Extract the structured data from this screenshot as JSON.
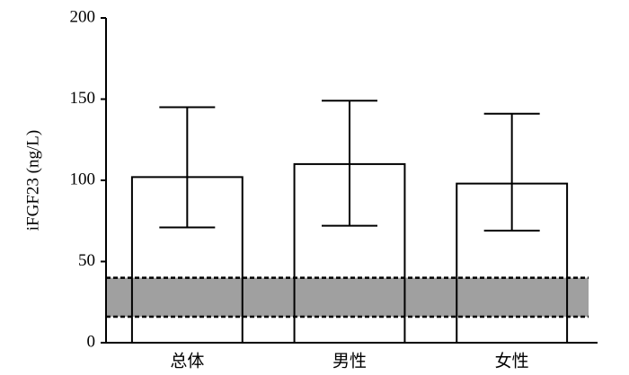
{
  "chart_data": {
    "type": "bar",
    "ylabel": "iFGF23 (ng/L)",
    "categories": [
      "总体",
      "男性",
      "女性"
    ],
    "values": [
      102,
      110,
      98
    ],
    "error_lower": [
      71,
      72,
      69
    ],
    "error_upper": [
      145,
      149,
      141
    ],
    "color": "#ffffff",
    "reference_band": {
      "from": 16,
      "to": 40,
      "color": "#a0a0a0"
    },
    "ylim": [
      0,
      200
    ],
    "yticks": [
      0,
      50,
      100,
      150,
      200
    ],
    "grid": false
  }
}
